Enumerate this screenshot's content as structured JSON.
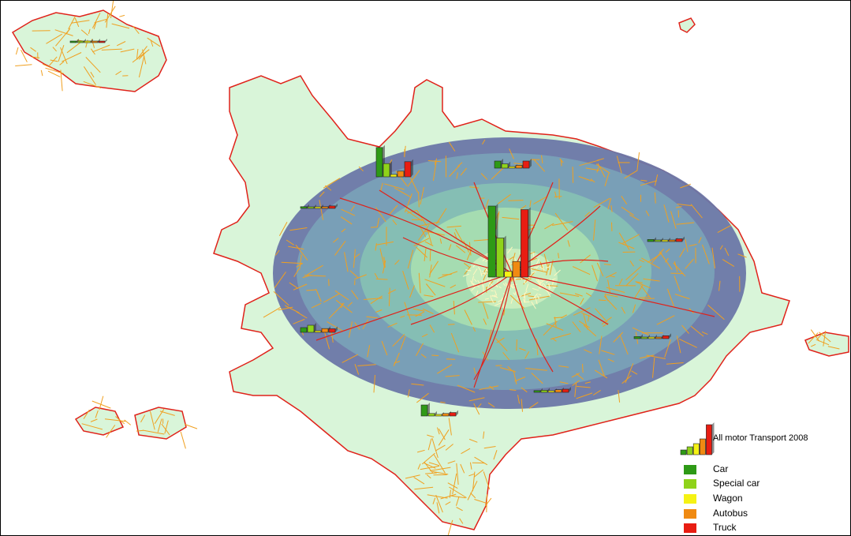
{
  "legend": {
    "title": "All motor Transport 2008",
    "items": [
      {
        "label": "Car",
        "color": "#2e9a16"
      },
      {
        "label": "Special car",
        "color": "#8fd31a"
      },
      {
        "label": "Wagon",
        "color": "#f5f214"
      },
      {
        "label": "Autobus",
        "color": "#f08a12"
      },
      {
        "label": "Truck",
        "color": "#e81d12"
      }
    ]
  },
  "colors": {
    "land": "#d9f5d9",
    "boundary": "#e0221a",
    "roads": "#f0a020",
    "zone_outer": "#6c77a8",
    "zone_2": "#7aa3b8",
    "zone_3": "#86c1b4",
    "zone_4": "#a8dfb0",
    "zone_core": "#cdeec0"
  },
  "charts": [
    {
      "zone": "center",
      "values": [
        1.0,
        0.55,
        0.08,
        0.22,
        0.95
      ]
    },
    {
      "zone": "north-west",
      "values": [
        0.62,
        0.28,
        0.05,
        0.12,
        0.32
      ]
    },
    {
      "zone": "north-east",
      "values": [
        0.3,
        0.18,
        0.05,
        0.12,
        0.3
      ]
    },
    {
      "zone": "west-upper",
      "values": [
        0.1,
        0.08,
        0.02,
        0.1,
        0.14
      ]
    },
    {
      "zone": "east-upper",
      "values": [
        0.12,
        0.08,
        0.03,
        0.08,
        0.16
      ]
    },
    {
      "zone": "west-lower",
      "values": [
        0.2,
        0.3,
        0.02,
        0.16,
        0.15
      ]
    },
    {
      "zone": "east-lower",
      "values": [
        0.12,
        0.08,
        0.03,
        0.08,
        0.17
      ]
    },
    {
      "zone": "south-east",
      "values": [
        0.1,
        0.12,
        0.03,
        0.15,
        0.18
      ]
    },
    {
      "zone": "south",
      "values": [
        0.35,
        0.08,
        0.03,
        0.08,
        0.11
      ]
    },
    {
      "zone": "far-north-west",
      "values": [
        0.02,
        0.03,
        0.01,
        0.03,
        0.04
      ]
    }
  ]
}
